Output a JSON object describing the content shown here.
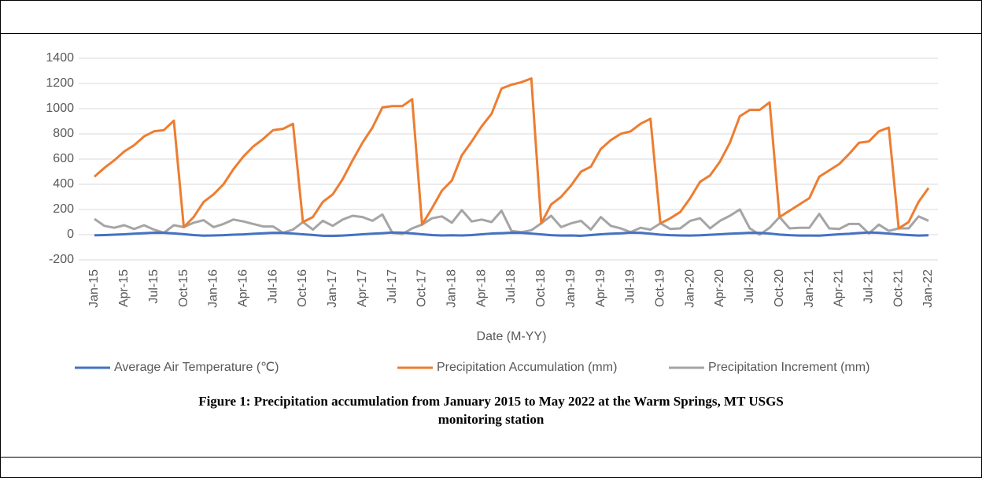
{
  "chart_data": {
    "type": "line",
    "xlabel": "Date (M-YY)",
    "categories": [
      "Jan-15",
      null,
      null,
      "Apr-15",
      null,
      null,
      "Jul-15",
      null,
      null,
      "Oct-15",
      null,
      null,
      "Jan-16",
      null,
      null,
      "Apr-16",
      null,
      null,
      "Jul-16",
      null,
      null,
      "Oct-16",
      null,
      null,
      "Jan-17",
      null,
      null,
      "Apr-17",
      null,
      null,
      "Jul-17",
      null,
      null,
      "Oct-17",
      null,
      null,
      "Jan-18",
      null,
      null,
      "Apr-18",
      null,
      null,
      "Jul-18",
      null,
      null,
      "Oct-18",
      null,
      null,
      "Jan-19",
      null,
      null,
      "Apr-19",
      null,
      null,
      "Jul-19",
      null,
      null,
      "Oct-19",
      null,
      null,
      "Jan-20",
      null,
      null,
      "Apr-20",
      null,
      null,
      "Jul-20",
      null,
      null,
      "Oct-20",
      null,
      null,
      "Jan-21",
      null,
      null,
      "Apr-21",
      null,
      null,
      "Jul-21",
      null,
      null,
      "Oct-21",
      null,
      null,
      "Jan-22"
    ],
    "series": [
      {
        "name": "Average Air Temperature (℃)",
        "color": "#4472c4",
        "values": [
          -5,
          -3,
          0,
          3,
          8,
          12,
          16,
          15,
          10,
          4,
          -3,
          -8,
          -6,
          -4,
          0,
          2,
          7,
          11,
          15,
          14,
          9,
          3,
          -2,
          -9,
          -10,
          -7,
          -2,
          3,
          8,
          12,
          17,
          16,
          10,
          3,
          -3,
          -6,
          -5,
          -6,
          -3,
          3,
          9,
          12,
          16,
          15,
          9,
          2,
          -4,
          -7,
          -6,
          -9,
          -3,
          3,
          8,
          11,
          16,
          15,
          8,
          0,
          -4,
          -6,
          -7,
          -5,
          -1,
          3,
          8,
          11,
          15,
          14,
          9,
          1,
          -4,
          -7,
          -7,
          -8,
          -2,
          3,
          7,
          13,
          17,
          15,
          9,
          2,
          -3,
          -7,
          -5
        ]
      },
      {
        "name": "Precipitation Accumulation (mm)",
        "color": "#ed7d31",
        "values": [
          460,
          530,
          590,
          660,
          710,
          780,
          820,
          830,
          905,
          60,
          140,
          260,
          320,
          400,
          520,
          620,
          700,
          760,
          830,
          840,
          880,
          100,
          140,
          260,
          320,
          440,
          590,
          730,
          850,
          1010,
          1020,
          1020,
          1075,
          80,
          210,
          350,
          430,
          630,
          740,
          860,
          960,
          1160,
          1190,
          1210,
          1240,
          90,
          240,
          300,
          390,
          500,
          540,
          680,
          750,
          800,
          820,
          880,
          920,
          90,
          130,
          180,
          290,
          420,
          470,
          580,
          730,
          940,
          990,
          990,
          1050,
          140,
          190,
          240,
          290,
          460,
          510,
          560,
          640,
          730,
          740,
          820,
          850,
          50,
          100,
          260,
          370
        ]
      },
      {
        "name": "Precipitation Increment (mm)",
        "color": "#a5a5a5",
        "values": [
          125,
          70,
          55,
          75,
          45,
          75,
          40,
          15,
          75,
          60,
          95,
          115,
          60,
          85,
          120,
          105,
          85,
          65,
          65,
          15,
          40,
          100,
          40,
          110,
          70,
          120,
          150,
          140,
          110,
          160,
          15,
          5,
          50,
          80,
          130,
          145,
          95,
          195,
          105,
          120,
          100,
          190,
          30,
          20,
          35,
          90,
          150,
          60,
          90,
          110,
          40,
          140,
          70,
          50,
          20,
          55,
          40,
          90,
          45,
          50,
          110,
          130,
          50,
          110,
          150,
          200,
          50,
          0,
          55,
          140,
          50,
          55,
          55,
          165,
          50,
          45,
          85,
          85,
          10,
          80,
          30,
          50,
          50,
          145,
          110
        ]
      }
    ],
    "ylim": [
      -200,
      1400
    ],
    "yticks": [
      -200,
      0,
      200,
      400,
      600,
      800,
      1000,
      1200,
      1400
    ],
    "grid": true,
    "legend": "bottom"
  },
  "caption": [
    "Figure 1: Precipitation accumulation from January 2015 to May 2022 at the Warm Springs, MT USGS",
    "monitoring station"
  ]
}
